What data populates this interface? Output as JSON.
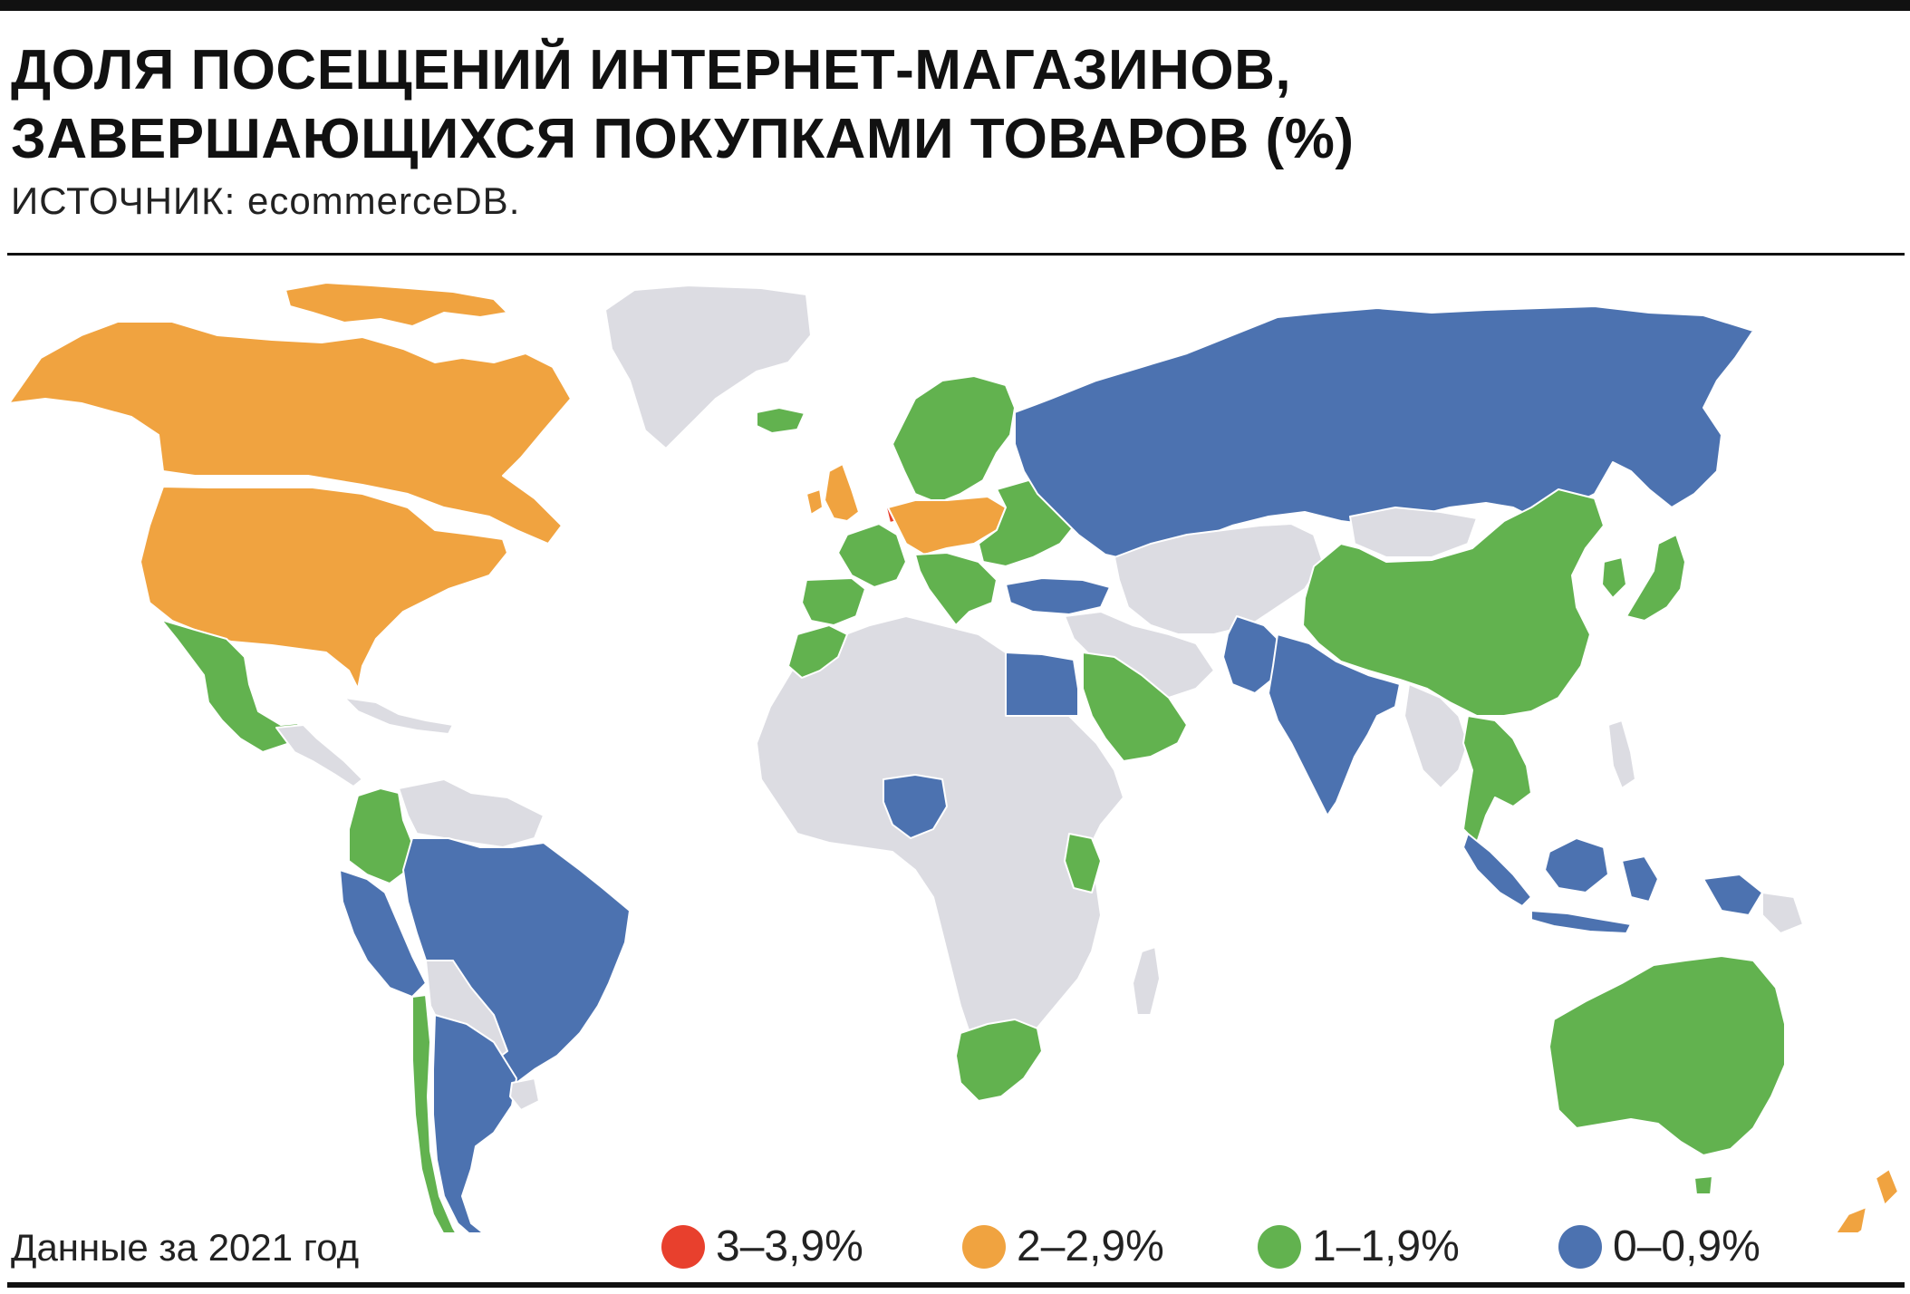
{
  "title_line1": "ДОЛЯ ПОСЕЩЕНИЙ ИНТЕРНЕТ-МАГАЗИНОВ,",
  "title_line2": "ЗАВЕРШАЮЩИХСЯ ПОКУПКАМИ ТОВАРОВ (%)",
  "source": "ИСТОЧНИК: ecommerceDB.",
  "footnote": "Данные за 2021 год",
  "legend": [
    {
      "label": "3–3,9%",
      "color": "#e8402d"
    },
    {
      "label": "2–2,9%",
      "color": "#f0a340"
    },
    {
      "label": "1–1,9%",
      "color": "#62b24f"
    },
    {
      "label": "0–0,9%",
      "color": "#4c72b0"
    }
  ],
  "colors": {
    "no_data": "#dcdce2",
    "border": "#ffffff"
  },
  "regions": [
    {
      "name": "Canada",
      "category": "2–2,9%"
    },
    {
      "name": "USA",
      "category": "2–2,9%"
    },
    {
      "name": "Mexico",
      "category": "1–1,9%"
    },
    {
      "name": "Colombia",
      "category": "1–1,9%"
    },
    {
      "name": "Brazil",
      "category": "0–0,9%"
    },
    {
      "name": "Argentina",
      "category": "0–0,9%"
    },
    {
      "name": "Chile",
      "category": "1–1,9%"
    },
    {
      "name": "Netherlands",
      "category": "3–3,9%"
    },
    {
      "name": "UK",
      "category": "2–2,9%"
    },
    {
      "name": "Germany",
      "category": "2–2,9%"
    },
    {
      "name": "Poland",
      "category": "2–2,9%"
    },
    {
      "name": "France",
      "category": "1–1,9%"
    },
    {
      "name": "Spain",
      "category": "1–1,9%"
    },
    {
      "name": "Italy",
      "category": "1–1,9%"
    },
    {
      "name": "Scandinavia",
      "category": "1–1,9%"
    },
    {
      "name": "Russia",
      "category": "0–0,9%"
    },
    {
      "name": "Turkey",
      "category": "0–0,9%"
    },
    {
      "name": "Egypt",
      "category": "0–0,9%"
    },
    {
      "name": "Nigeria",
      "category": "0–0,9%"
    },
    {
      "name": "Kenya",
      "category": "1–1,9%"
    },
    {
      "name": "South Africa",
      "category": "1–1,9%"
    },
    {
      "name": "Morocco",
      "category": "1–1,9%"
    },
    {
      "name": "Saudi Arabia",
      "category": "1–1,9%"
    },
    {
      "name": "India",
      "category": "0–0,9%"
    },
    {
      "name": "China",
      "category": "1–1,9%"
    },
    {
      "name": "Japan",
      "category": "1–1,9%"
    },
    {
      "name": "Vietnam",
      "category": "1–1,9%"
    },
    {
      "name": "Indonesia",
      "category": "0–0,9%"
    },
    {
      "name": "Australia",
      "category": "1–1,9%"
    },
    {
      "name": "New Zealand",
      "category": "2–2,9%"
    }
  ]
}
